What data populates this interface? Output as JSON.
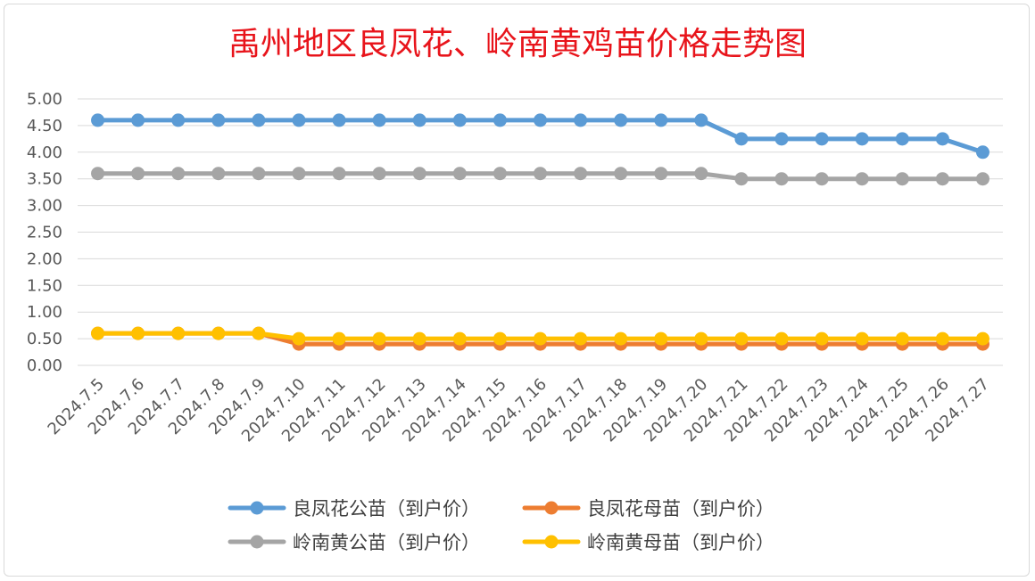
{
  "chart_data": {
    "type": "line",
    "title": "禹州地区良凤花、岭南黄鸡苗价格走势图",
    "xlabel": "",
    "ylabel": "",
    "ylim": [
      0,
      5
    ],
    "yticks": [
      "0.00",
      "0.50",
      "1.00",
      "1.50",
      "2.00",
      "2.50",
      "3.00",
      "3.50",
      "4.00",
      "4.50",
      "5.00"
    ],
    "grid": true,
    "legend_position": "bottom",
    "categories": [
      "2024.7.5",
      "2024.7.6",
      "2024.7.7",
      "2024.7.8",
      "2024.7.9",
      "2024.7.10",
      "2024.7.11",
      "2024.7.12",
      "2024.7.13",
      "2024.7.14",
      "2024.7.15",
      "2024.7.16",
      "2024.7.17",
      "2024.7.18",
      "2024.7.19",
      "2024.7.20",
      "2024.7.21",
      "2024.7.22",
      "2024.7.23",
      "2024.7.24",
      "2024.7.25",
      "2024.7.26",
      "2024.7.27"
    ],
    "series": [
      {
        "name": "良凤花公苗（到户价）",
        "color": "#5b9bd5",
        "values": [
          4.6,
          4.6,
          4.6,
          4.6,
          4.6,
          4.6,
          4.6,
          4.6,
          4.6,
          4.6,
          4.6,
          4.6,
          4.6,
          4.6,
          4.6,
          4.6,
          4.25,
          4.25,
          4.25,
          4.25,
          4.25,
          4.25,
          4.0
        ]
      },
      {
        "name": "良凤花母苗（到户价）",
        "color": "#ed7d31",
        "values": [
          0.6,
          0.6,
          0.6,
          0.6,
          0.6,
          0.4,
          0.4,
          0.4,
          0.4,
          0.4,
          0.4,
          0.4,
          0.4,
          0.4,
          0.4,
          0.4,
          0.4,
          0.4,
          0.4,
          0.4,
          0.4,
          0.4,
          0.4
        ]
      },
      {
        "name": "岭南黄公苗（到户价）",
        "color": "#a5a5a5",
        "values": [
          3.6,
          3.6,
          3.6,
          3.6,
          3.6,
          3.6,
          3.6,
          3.6,
          3.6,
          3.6,
          3.6,
          3.6,
          3.6,
          3.6,
          3.6,
          3.6,
          3.5,
          3.5,
          3.5,
          3.5,
          3.5,
          3.5,
          3.5
        ]
      },
      {
        "name": "岭南黄母苗（到户价）",
        "color": "#ffc000",
        "values": [
          0.6,
          0.6,
          0.6,
          0.6,
          0.6,
          0.5,
          0.5,
          0.5,
          0.5,
          0.5,
          0.5,
          0.5,
          0.5,
          0.5,
          0.5,
          0.5,
          0.5,
          0.5,
          0.5,
          0.5,
          0.5,
          0.5,
          0.5
        ]
      }
    ]
  }
}
